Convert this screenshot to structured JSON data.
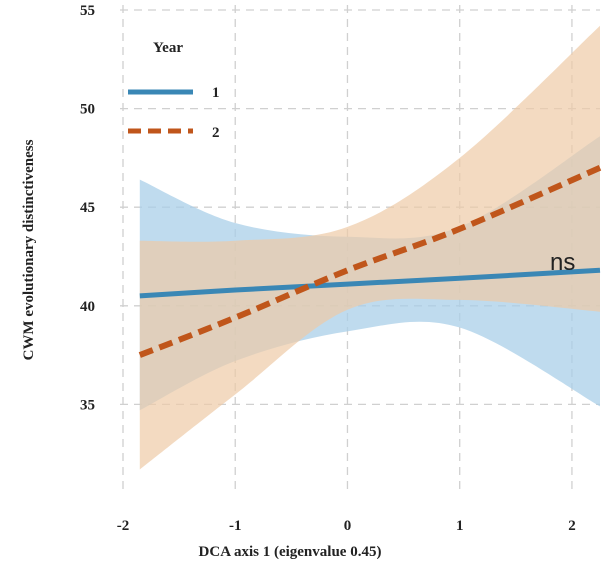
{
  "chart_data": {
    "type": "line",
    "title": "",
    "xlabel": "DCA axis 1 (eigenvalue 0.45)",
    "ylabel": "CWM  evolutionary distinctiveness",
    "xlim": [
      -2.0,
      2.25
    ],
    "ylim": [
      30.0,
      55.0
    ],
    "x_ticks": [
      -2,
      -1,
      0,
      1,
      2
    ],
    "y_ticks": [
      35,
      40,
      45,
      50,
      55
    ],
    "grid": true,
    "legend": {
      "title": "Year",
      "position": "top-left"
    },
    "annotation": {
      "text": "ns"
    },
    "series": [
      {
        "name": "1",
        "color": "#3a87b5",
        "band_color": "#a9cfe8",
        "line_style": "solid",
        "x": [
          -1.85,
          -1.0,
          0.0,
          1.0,
          2.25
        ],
        "y": [
          40.5,
          40.8,
          41.1,
          41.4,
          41.8
        ],
        "ci_lower": [
          34.7,
          37.2,
          38.7,
          38.9,
          34.9
        ],
        "ci_upper": [
          46.4,
          44.2,
          43.5,
          44.0,
          48.6
        ]
      },
      {
        "name": "2",
        "color": "#c0561b",
        "band_color": "#eecba6",
        "line_style": "dashed",
        "x": [
          -1.85,
          -1.0,
          0.0,
          1.0,
          2.25
        ],
        "y": [
          37.5,
          39.4,
          41.8,
          43.9,
          47.0
        ],
        "ci_lower": [
          31.7,
          35.5,
          39.8,
          40.3,
          39.7
        ],
        "ci_upper": [
          43.3,
          43.3,
          44.0,
          47.5,
          54.2
        ]
      }
    ]
  }
}
